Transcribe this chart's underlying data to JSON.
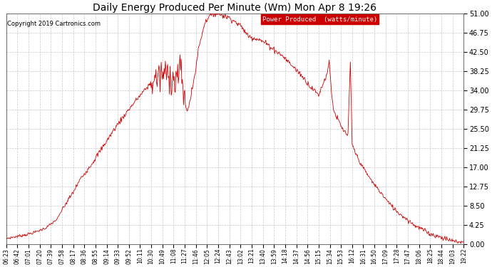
{
  "title": "Daily Energy Produced Per Minute (Wm) Mon Apr 8 19:26",
  "copyright": "Copyright 2019 Cartronics.com",
  "legend_label": "Power Produced  (watts/minute)",
  "legend_bg": "#cc0000",
  "legend_fg": "#ffffff",
  "line_color": "#cc0000",
  "background_color": "#ffffff",
  "grid_color": "#c8c8c8",
  "ylim": [
    0.0,
    51.0
  ],
  "yticks": [
    0.0,
    4.25,
    8.5,
    12.75,
    17.0,
    21.25,
    25.5,
    29.75,
    34.0,
    38.25,
    42.5,
    46.75,
    51.0
  ],
  "x_labels": [
    "06:23",
    "06:42",
    "07:01",
    "07:20",
    "07:39",
    "07:58",
    "08:17",
    "08:36",
    "08:55",
    "09:14",
    "09:33",
    "09:52",
    "10:11",
    "10:30",
    "10:49",
    "11:08",
    "11:27",
    "11:46",
    "12:05",
    "12:24",
    "12:43",
    "13:02",
    "13:21",
    "13:40",
    "13:59",
    "14:18",
    "14:37",
    "14:56",
    "15:15",
    "15:34",
    "15:53",
    "16:12",
    "16:31",
    "16:50",
    "17:09",
    "17:28",
    "17:47",
    "18:06",
    "18:25",
    "18:44",
    "19:03",
    "19:22"
  ]
}
